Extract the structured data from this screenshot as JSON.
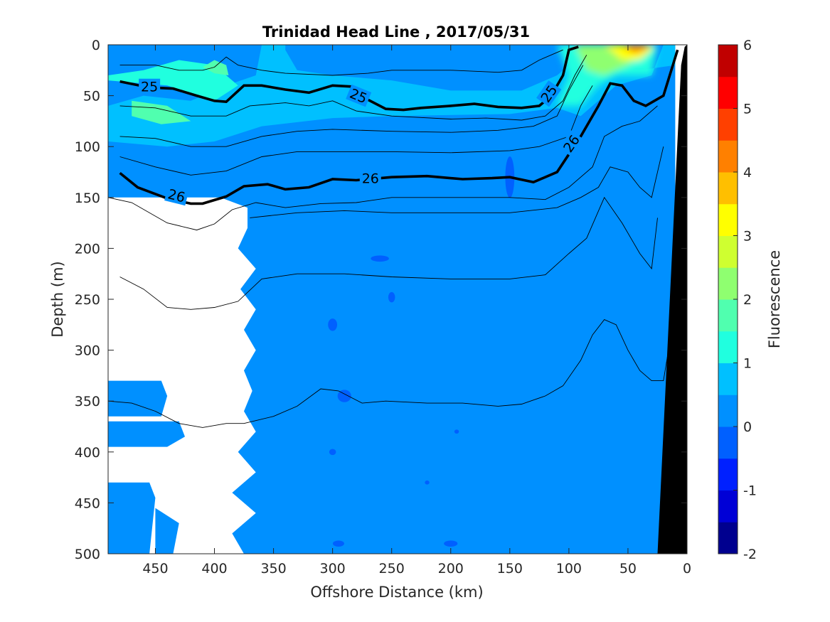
{
  "chart_data": {
    "type": "heatmap",
    "title": "Trinidad Head Line , 2017/05/31",
    "xlabel": "Offshore Distance (km)",
    "ylabel": "Depth (m)",
    "colorbar_label": "Fluorescence",
    "xlim": [
      490,
      0
    ],
    "ylim": [
      500,
      0
    ],
    "x_reversed": true,
    "y_reversed": true,
    "xticks": [
      450,
      400,
      350,
      300,
      250,
      200,
      150,
      100,
      50,
      0
    ],
    "yticks": [
      0,
      50,
      100,
      150,
      200,
      250,
      300,
      350,
      400,
      450,
      500
    ],
    "colorbar": {
      "range": [
        -2,
        6
      ],
      "ticks": [
        6,
        5,
        4,
        3,
        2,
        1,
        0,
        -1,
        -2
      ],
      "colors": [
        "#00008f",
        "#0000d6",
        "#0020ff",
        "#0060ff",
        "#0090ff",
        "#00c0ff",
        "#20ffdf",
        "#50ffaf",
        "#8fff70",
        "#cfff30",
        "#ffff00",
        "#ffbf00",
        "#ff8000",
        "#ff4000",
        "#ff0000",
        "#c00000"
      ]
    },
    "fill_regions": {
      "background_fluorescence": 0.3,
      "surface_layer_fluorescence": 0.8,
      "subsurface_max_fluorescence": 1.5,
      "nearshore_max_fluorescence": 4.0
    },
    "density_contours": [
      {
        "level": 25,
        "label": "25",
        "bold": true,
        "points": [
          [
            480,
            36
          ],
          [
            455,
            42
          ],
          [
            435,
            43
          ],
          [
            415,
            50
          ],
          [
            400,
            55
          ],
          [
            390,
            56
          ],
          [
            375,
            40
          ],
          [
            360,
            40
          ],
          [
            340,
            44
          ],
          [
            320,
            47
          ],
          [
            300,
            40
          ],
          [
            285,
            41
          ],
          [
            270,
            54
          ],
          [
            255,
            63
          ],
          [
            240,
            64
          ],
          [
            225,
            62
          ],
          [
            200,
            60
          ],
          [
            180,
            58
          ],
          [
            160,
            61
          ],
          [
            140,
            62
          ],
          [
            125,
            60
          ],
          [
            115,
            50
          ],
          [
            105,
            30
          ],
          [
            100,
            5
          ],
          [
            92,
            2
          ]
        ]
      },
      {
        "level": 26,
        "label": "26",
        "bold": true,
        "points": [
          [
            480,
            126
          ],
          [
            465,
            140
          ],
          [
            440,
            151
          ],
          [
            420,
            156
          ],
          [
            410,
            156
          ],
          [
            390,
            149
          ],
          [
            375,
            139
          ],
          [
            355,
            137
          ],
          [
            340,
            142
          ],
          [
            320,
            140
          ],
          [
            300,
            132
          ],
          [
            280,
            133
          ],
          [
            250,
            130
          ],
          [
            220,
            129
          ],
          [
            190,
            132
          ],
          [
            165,
            131
          ],
          [
            150,
            130
          ],
          [
            130,
            135
          ],
          [
            110,
            125
          ],
          [
            90,
            90
          ],
          [
            75,
            60
          ],
          [
            65,
            38
          ],
          [
            55,
            40
          ],
          [
            45,
            55
          ],
          [
            35,
            60
          ],
          [
            20,
            50
          ],
          [
            12,
            20
          ],
          [
            8,
            5
          ]
        ]
      }
    ],
    "annotations": [
      "25",
      "25",
      "25",
      "26",
      "26",
      "26"
    ]
  }
}
